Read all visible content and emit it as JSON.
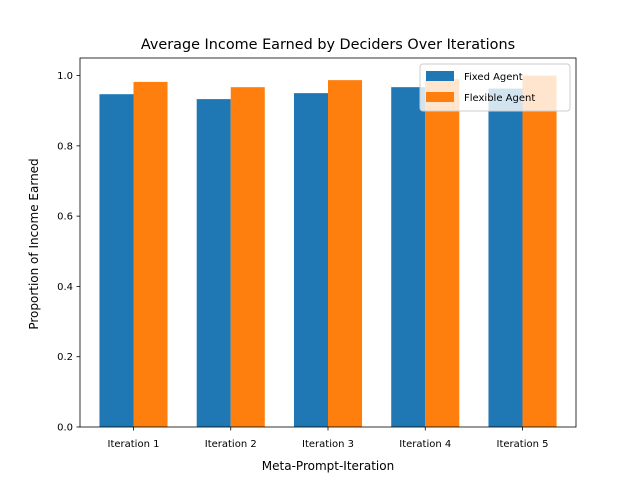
{
  "chart_data": {
    "type": "bar",
    "title": "Average Income Earned by Deciders Over Iterations",
    "xlabel": "Meta-Prompt-Iteration",
    "ylabel": "Proportion of Income Earned",
    "categories": [
      "Iteration 1",
      "Iteration 2",
      "Iteration 3",
      "Iteration 4",
      "Iteration 5"
    ],
    "series": [
      {
        "name": "Fixed Agent",
        "color": "#1f77b4",
        "values": [
          0.947,
          0.933,
          0.95,
          0.967,
          0.963
        ]
      },
      {
        "name": "Flexible Agent",
        "color": "#ff7f0e",
        "values": [
          0.982,
          0.967,
          0.987,
          0.99,
          1.0
        ]
      }
    ],
    "ylim": [
      0,
      1.05
    ],
    "yticks": [
      0.0,
      0.2,
      0.4,
      0.6,
      0.8,
      1.0
    ],
    "ytick_labels": [
      "0.0",
      "0.2",
      "0.4",
      "0.6",
      "0.8",
      "1.0"
    ],
    "legend": "top-right",
    "grid": false
  }
}
